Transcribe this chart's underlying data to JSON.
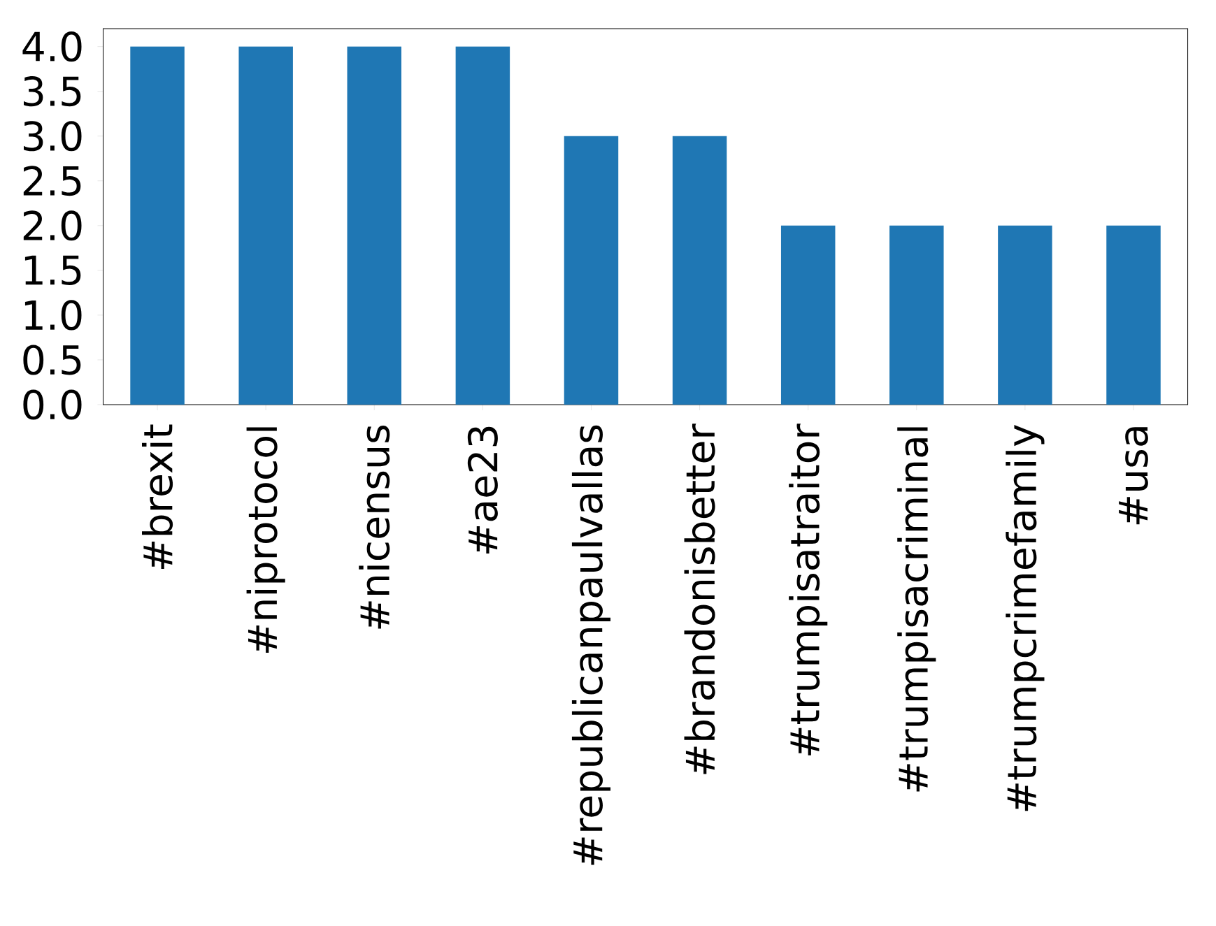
{
  "chart_data": {
    "type": "bar",
    "categories": [
      "#brexit",
      "#niprotocol",
      "#nicensus",
      "#ae23",
      "#republicanpaulvallas",
      "#brandonisbetter",
      "#trumpisatraitor",
      "#trumpisacriminal",
      "#trumpcrimefamily",
      "#usa"
    ],
    "values": [
      4,
      4,
      4,
      4,
      3,
      3,
      2,
      2,
      2,
      2
    ],
    "color": "#1f77b4",
    "ylim": [
      0,
      4.2
    ],
    "yticks": [
      {
        "value": 0,
        "label": "0.0"
      },
      {
        "value": 0.5,
        "label": "0.5"
      },
      {
        "value": 1,
        "label": "1.0"
      },
      {
        "value": 1.5,
        "label": "1.5"
      },
      {
        "value": 2,
        "label": "2.0"
      },
      {
        "value": 2.5,
        "label": "2.5"
      },
      {
        "value": 3,
        "label": "3.0"
      },
      {
        "value": 3.5,
        "label": "3.5"
      },
      {
        "value": 4,
        "label": "4.0"
      }
    ],
    "grid": false
  }
}
